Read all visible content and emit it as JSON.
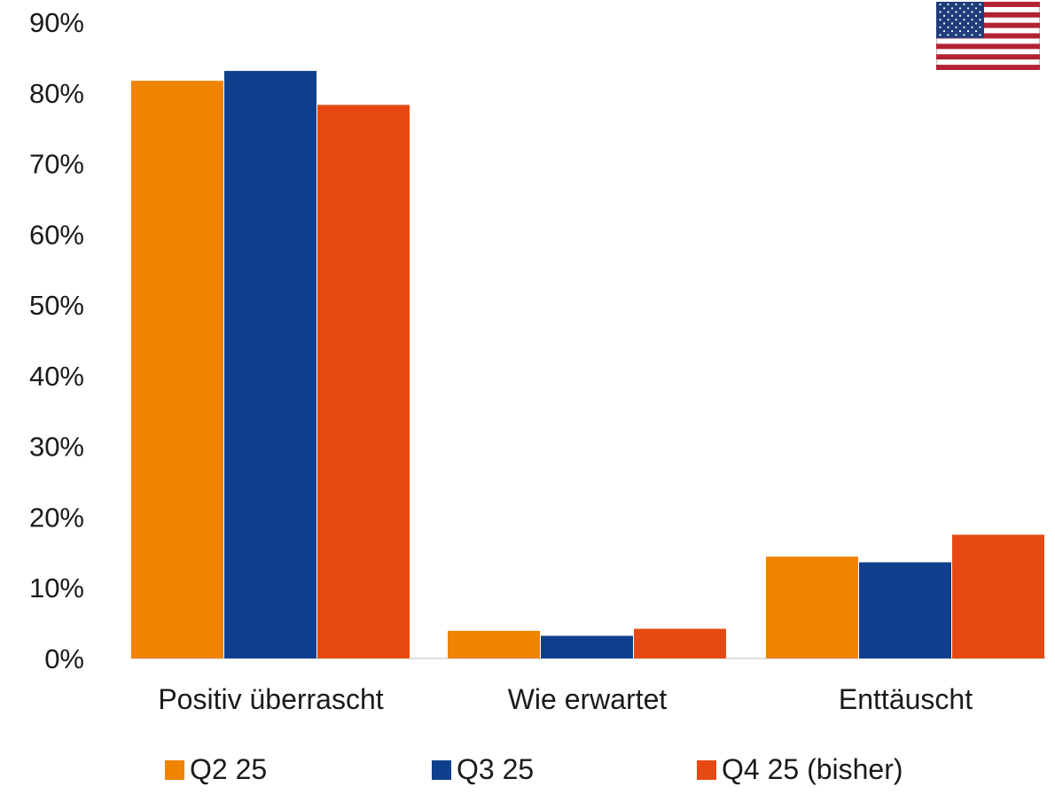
{
  "chart_data": {
    "type": "bar",
    "categories": [
      "Positiv überrascht",
      "Wie erwartet",
      "Enttäuscht"
    ],
    "series": [
      {
        "name": "Q2 25",
        "color": "#F08300",
        "values": [
          81.7,
          3.9,
          14.4
        ]
      },
      {
        "name": "Q3 25",
        "color": "#103F8D",
        "values": [
          83.1,
          3.2,
          13.6
        ]
      },
      {
        "name": "Q4 25 (bisher)",
        "color": "#E64A12",
        "values": [
          78.3,
          4.2,
          17.5
        ]
      }
    ],
    "yticks": [
      "0%",
      "10%",
      "20%",
      "30%",
      "40%",
      "50%",
      "60%",
      "70%",
      "80%",
      "90%"
    ],
    "ylim": [
      0,
      90
    ],
    "grid": false,
    "legend_position": "bottom",
    "flag_icon": "us-flag-icon"
  }
}
